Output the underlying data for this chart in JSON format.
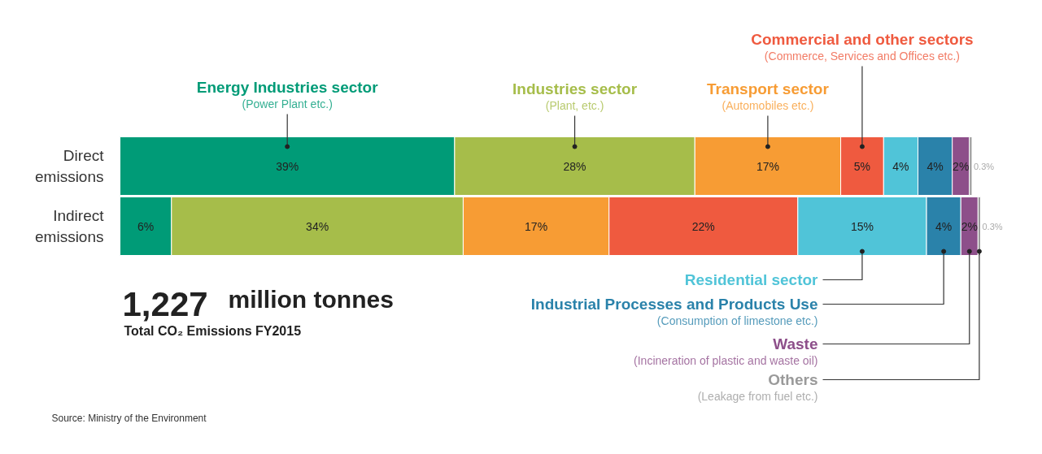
{
  "chart_data": {
    "type": "bar",
    "orientation": "horizontal",
    "stacked": true,
    "title": "1,227 million tonnes",
    "subtitle": "Total CO₂ Emissions FY2015",
    "categories": [
      "Direct emissions",
      "Indirect emissions"
    ],
    "xlim": [
      0,
      100.3
    ],
    "tick_labels": "y",
    "grid": false,
    "series": [
      {
        "name": "Energy Industries sector",
        "color": "#009b77",
        "values": [
          39,
          6
        ],
        "value_labels": [
          "39%",
          "6%"
        ]
      },
      {
        "name": "Industries sector",
        "color": "#a6bd4a",
        "values": [
          28,
          34
        ],
        "value_labels": [
          "28%",
          "34%"
        ]
      },
      {
        "name": "Transport sector",
        "color": "#f79c34",
        "values": [
          17,
          17
        ],
        "value_labels": [
          "17%",
          "17%"
        ]
      },
      {
        "name": "Commercial and other sectors",
        "color": "#ef5a3f",
        "values": [
          5,
          22
        ],
        "value_labels": [
          "5%",
          "22%"
        ]
      },
      {
        "name": "Residential sector",
        "color": "#50c4d8",
        "values": [
          4,
          15
        ],
        "value_labels": [
          "4%",
          "15%"
        ]
      },
      {
        "name": "Industrial Processes and Products Use",
        "color": "#2a82aa",
        "values": [
          4,
          4
        ],
        "value_labels": [
          "4%",
          "4%"
        ]
      },
      {
        "name": "Waste",
        "color": "#8d4f8a",
        "values": [
          2,
          2
        ],
        "value_labels": [
          "2%",
          "2%"
        ]
      },
      {
        "name": "Others",
        "color": "#9a9a9a",
        "values": [
          0.3,
          0.3
        ],
        "value_labels": [
          "0.3%",
          "0.3%"
        ]
      }
    ],
    "annotations": [
      "(Power Plant etc.)",
      "(Plant, etc.)",
      "(Automobiles etc.)",
      "(Commerce, Services and Offices etc.)",
      "(Consumption of limestone etc.)",
      "(Incineration of plastic and waste oil)",
      "(Leakage from fuel etc.)",
      "Source: Ministry of the Environment"
    ]
  }
}
